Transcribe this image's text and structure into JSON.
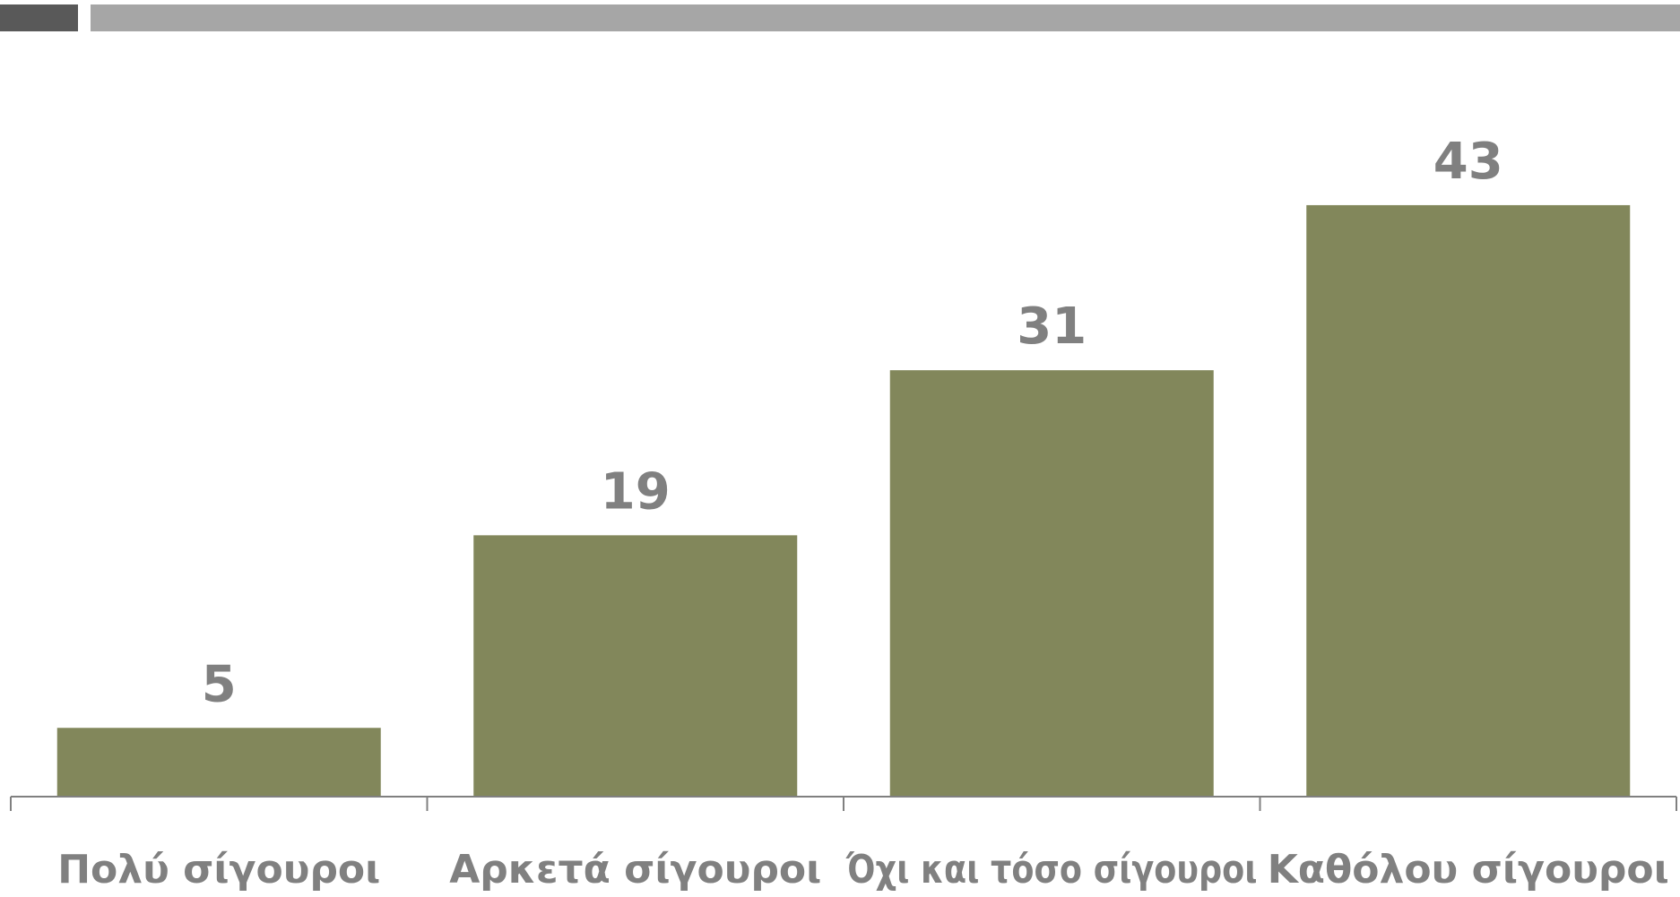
{
  "chart_data": {
    "type": "bar",
    "categories": [
      "Πολύ σίγουροι",
      "Αρκετά σίγουροι",
      "Όχι και τόσο σίγουροι",
      "Καθόλου σίγουροι"
    ],
    "values": [
      5,
      19,
      31,
      43
    ],
    "title": "",
    "xlabel": "",
    "ylabel": "",
    "ylim": [
      0,
      50
    ],
    "grid": false,
    "data_labels": true,
    "colors": {
      "bar": "#82875b",
      "axis": "#808080",
      "text": "#808080"
    }
  },
  "header": {
    "dark_color": "#595959",
    "light_color": "#a6a6a6"
  }
}
